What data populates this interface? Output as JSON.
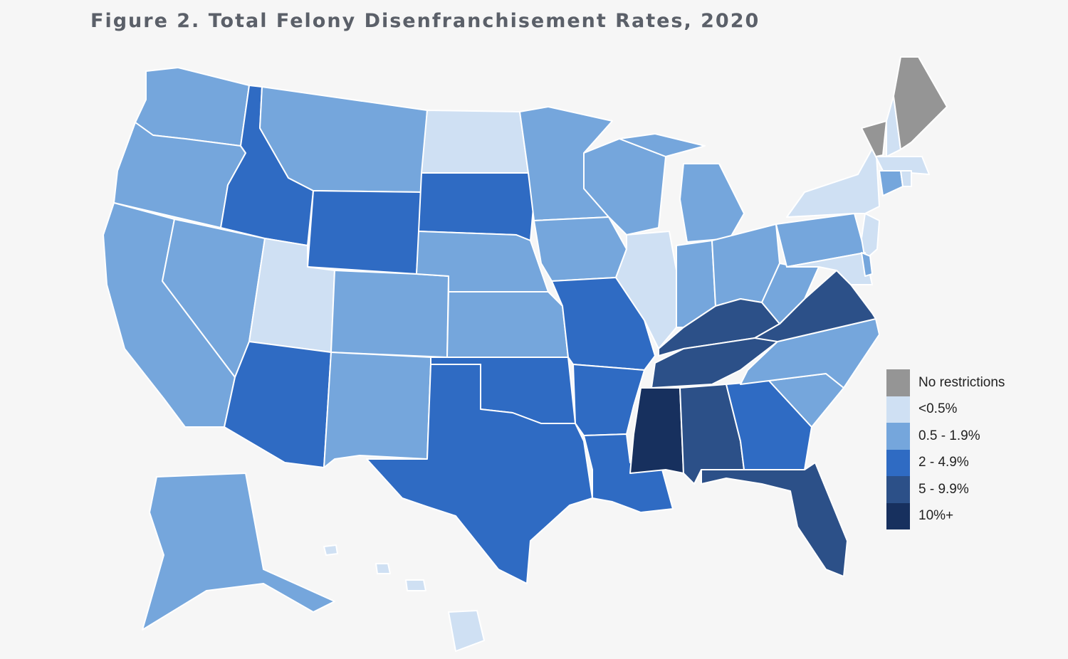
{
  "title": "Figure 2. Total Felony Disenfranchisement Rates, 2020",
  "chart_data": {
    "type": "choropleth",
    "title": "Figure 2. Total Felony Disenfranchisement Rates, 2020",
    "legend_position": "right",
    "categories": [
      {
        "key": "none",
        "label": "No restrictions",
        "color": "#959595"
      },
      {
        "key": "lt05",
        "label": "<0.5%",
        "color": "#cfe0f3"
      },
      {
        "key": "c05_19",
        "label": "0.5 - 1.9%",
        "color": "#75a6dc"
      },
      {
        "key": "c2_49",
        "label": "2 - 4.9%",
        "color": "#2f6bc3"
      },
      {
        "key": "c5_99",
        "label": "5 - 9.9%",
        "color": "#2c5088"
      },
      {
        "key": "c10",
        "label": "10%+",
        "color": "#17305e"
      }
    ],
    "states": {
      "WA": "c05_19",
      "OR": "c05_19",
      "CA": "c05_19",
      "NV": "c05_19",
      "ID": "c2_49",
      "MT": "c05_19",
      "WY": "c2_49",
      "UT": "lt05",
      "AZ": "c2_49",
      "CO": "c05_19",
      "NM": "c05_19",
      "ND": "lt05",
      "SD": "c2_49",
      "NE": "c05_19",
      "KS": "c05_19",
      "OK": "c2_49",
      "TX": "c2_49",
      "MN": "c05_19",
      "IA": "c05_19",
      "MO": "c2_49",
      "AR": "c2_49",
      "LA": "c2_49",
      "WI": "c05_19",
      "IL": "lt05",
      "MI": "c05_19",
      "IN": "c05_19",
      "OH": "c05_19",
      "KY": "c5_99",
      "TN": "c5_99",
      "MS": "c10",
      "AL": "c5_99",
      "GA": "c2_49",
      "FL": "c5_99",
      "SC": "c05_19",
      "NC": "c05_19",
      "VA": "c5_99",
      "WV": "c05_19",
      "PA": "c05_19",
      "NY": "lt05",
      "VT": "none",
      "ME": "none",
      "NH": "lt05",
      "MA": "lt05",
      "RI": "lt05",
      "CT": "c05_19",
      "NJ": "lt05",
      "DE": "c05_19",
      "MD": "lt05",
      "AK": "c05_19",
      "HI": "lt05"
    }
  }
}
